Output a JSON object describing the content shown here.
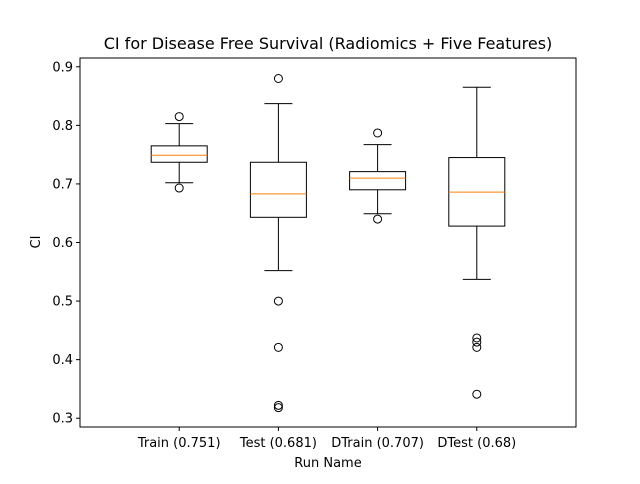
{
  "chart_data": {
    "type": "boxplot",
    "title": "CI for Disease Free Survival (Radiomics + Five Features)",
    "xlabel": "Run Name",
    "ylabel": "CI",
    "ylim": [
      0.285,
      0.915
    ],
    "yticks": [
      0.3,
      0.4,
      0.5,
      0.6,
      0.7,
      0.8,
      0.9
    ],
    "ytick_labels": [
      "0.3",
      "0.4",
      "0.5",
      "0.6",
      "0.7",
      "0.8",
      "0.9"
    ],
    "grid": false,
    "colors": {
      "box": "#000000",
      "median": "#ff7f0e"
    },
    "categories": [
      "Train (0.751)",
      "Test (0.681)",
      "DTrain (0.707)",
      "DTest (0.68)"
    ],
    "boxes": [
      {
        "category": "Train (0.751)",
        "whisker_low": 0.702,
        "q1": 0.737,
        "median": 0.749,
        "q3": 0.765,
        "whisker_high": 0.803,
        "outliers": [
          0.815,
          0.693
        ]
      },
      {
        "category": "Test (0.681)",
        "whisker_low": 0.552,
        "q1": 0.643,
        "median": 0.683,
        "q3": 0.737,
        "whisker_high": 0.837,
        "outliers": [
          0.88,
          0.5,
          0.421,
          0.322,
          0.318
        ]
      },
      {
        "category": "DTrain (0.707)",
        "whisker_low": 0.649,
        "q1": 0.69,
        "median": 0.71,
        "q3": 0.721,
        "whisker_high": 0.767,
        "outliers": [
          0.787,
          0.64
        ]
      },
      {
        "category": "DTest (0.68)",
        "whisker_low": 0.537,
        "q1": 0.628,
        "median": 0.686,
        "q3": 0.745,
        "whisker_high": 0.865,
        "outliers": [
          0.437,
          0.43,
          0.421,
          0.341
        ]
      }
    ]
  }
}
